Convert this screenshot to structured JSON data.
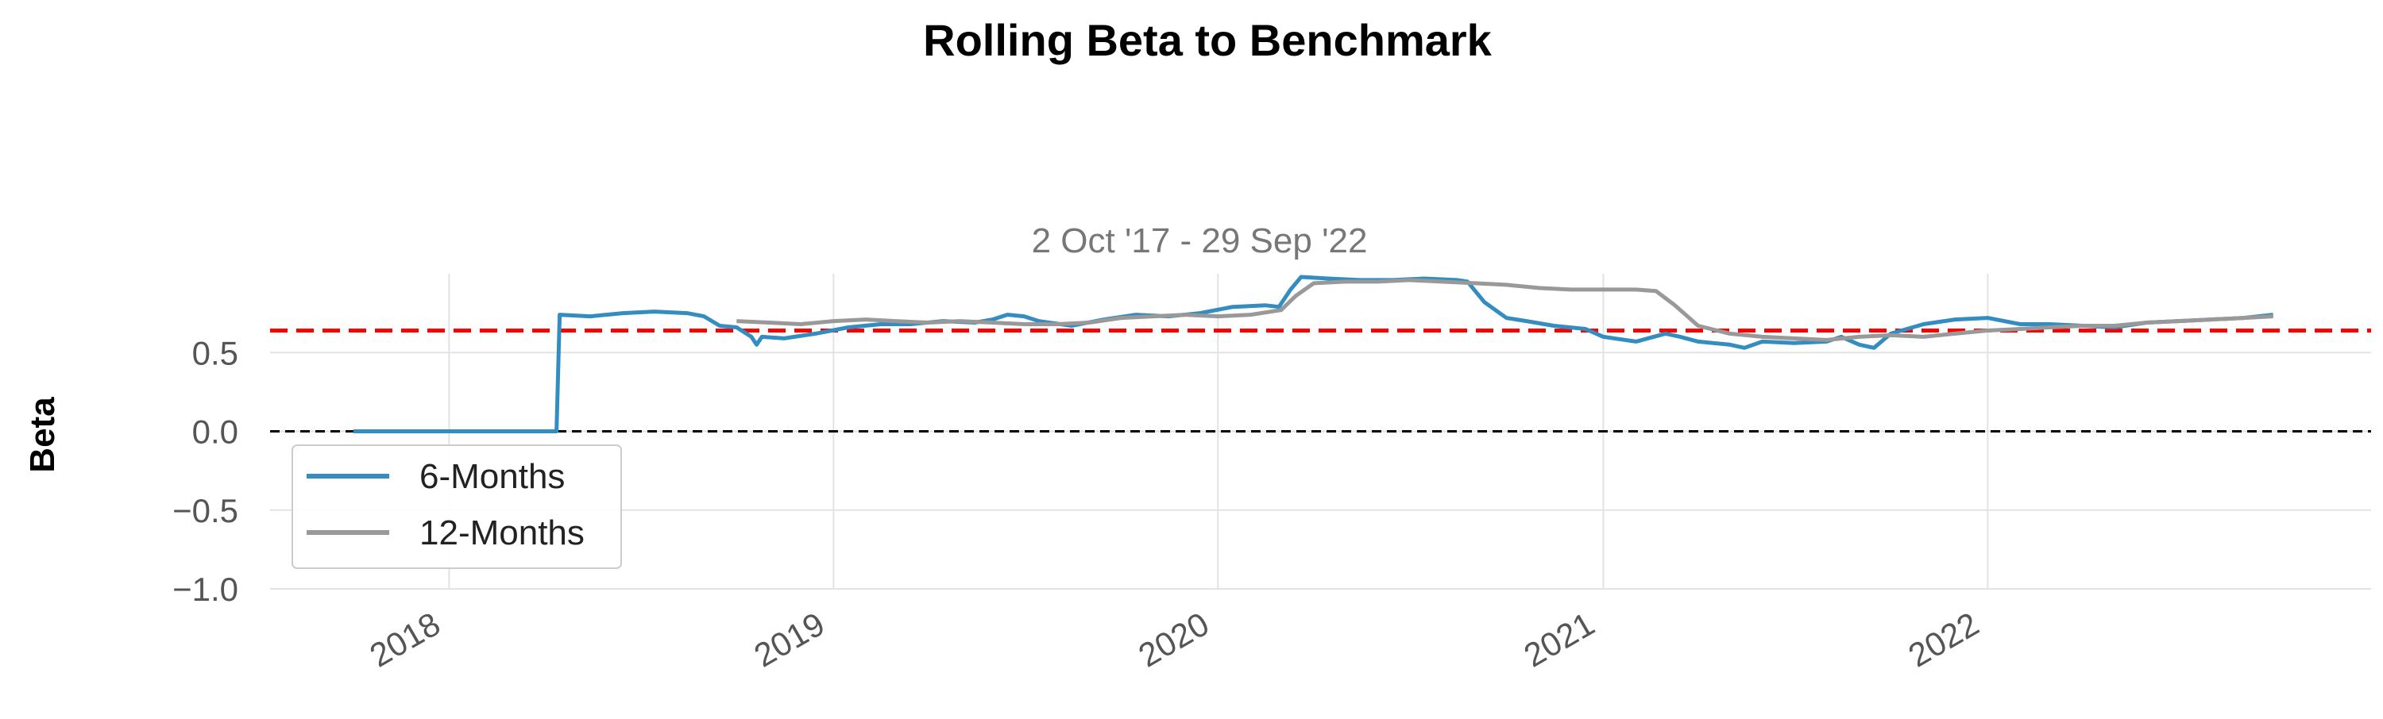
{
  "chart_data": {
    "type": "line",
    "title": "Rolling Beta to Benchmark",
    "subtitle": "2 Oct '17 - 29 Sep '22",
    "xlabel": "",
    "ylabel": "Beta",
    "xlim": [
      "2017-07-15",
      "2022-12-31"
    ],
    "ylim": [
      -1.0,
      1.0
    ],
    "yticks": [
      0.5,
      0.0,
      -0.5,
      -1.0
    ],
    "ytick_labels": [
      "0.5",
      "0.0",
      "−0.5",
      "−1.0"
    ],
    "xticks": [
      "2018-01-01",
      "2019-01-01",
      "2020-01-01",
      "2021-01-01",
      "2022-01-01"
    ],
    "xtick_labels": [
      "2018",
      "2019",
      "2020",
      "2021",
      "2022"
    ],
    "grid": true,
    "legend_position": "lower-left",
    "reference_lines": [
      {
        "y": 0.64,
        "color": "#ff0000",
        "style": "dashed"
      },
      {
        "y": 0.0,
        "color": "#000000",
        "style": "dashed"
      }
    ],
    "series": [
      {
        "name": "6-Months",
        "color": "#348dc1",
        "points": [
          [
            "2017-10-02",
            0.0
          ],
          [
            "2018-04-13",
            0.0
          ],
          [
            "2018-04-16",
            0.74
          ],
          [
            "2018-05-15",
            0.73
          ],
          [
            "2018-06-15",
            0.75
          ],
          [
            "2018-07-15",
            0.76
          ],
          [
            "2018-08-15",
            0.75
          ],
          [
            "2018-08-31",
            0.73
          ],
          [
            "2018-09-15",
            0.67
          ],
          [
            "2018-10-01",
            0.66
          ],
          [
            "2018-10-15",
            0.6
          ],
          [
            "2018-10-20",
            0.55
          ],
          [
            "2018-10-25",
            0.6
          ],
          [
            "2018-11-15",
            0.59
          ],
          [
            "2018-12-15",
            0.62
          ],
          [
            "2019-01-15",
            0.66
          ],
          [
            "2019-02-15",
            0.68
          ],
          [
            "2019-03-15",
            0.68
          ],
          [
            "2019-04-15",
            0.7
          ],
          [
            "2019-05-15",
            0.69
          ],
          [
            "2019-06-01",
            0.71
          ],
          [
            "2019-06-15",
            0.74
          ],
          [
            "2019-07-01",
            0.73
          ],
          [
            "2019-07-15",
            0.7
          ],
          [
            "2019-08-15",
            0.67
          ],
          [
            "2019-09-15",
            0.71
          ],
          [
            "2019-10-15",
            0.74
          ],
          [
            "2019-11-15",
            0.73
          ],
          [
            "2019-12-15",
            0.75
          ],
          [
            "2020-01-15",
            0.79
          ],
          [
            "2020-02-15",
            0.8
          ],
          [
            "2020-02-28",
            0.79
          ],
          [
            "2020-03-10",
            0.9
          ],
          [
            "2020-03-20",
            0.98
          ],
          [
            "2020-04-15",
            0.97
          ],
          [
            "2020-05-15",
            0.96
          ],
          [
            "2020-06-15",
            0.96
          ],
          [
            "2020-07-15",
            0.97
          ],
          [
            "2020-08-15",
            0.96
          ],
          [
            "2020-08-25",
            0.95
          ],
          [
            "2020-09-10",
            0.82
          ],
          [
            "2020-10-01",
            0.72
          ],
          [
            "2020-10-20",
            0.7
          ],
          [
            "2020-11-15",
            0.67
          ],
          [
            "2020-12-15",
            0.65
          ],
          [
            "2021-01-01",
            0.6
          ],
          [
            "2021-02-01",
            0.57
          ],
          [
            "2021-03-01",
            0.62
          ],
          [
            "2021-03-15",
            0.6
          ],
          [
            "2021-04-01",
            0.57
          ],
          [
            "2021-05-01",
            0.55
          ],
          [
            "2021-05-15",
            0.53
          ],
          [
            "2021-06-01",
            0.57
          ],
          [
            "2021-07-01",
            0.56
          ],
          [
            "2021-08-01",
            0.57
          ],
          [
            "2021-08-15",
            0.6
          ],
          [
            "2021-09-01",
            0.55
          ],
          [
            "2021-09-15",
            0.53
          ],
          [
            "2021-10-01",
            0.62
          ],
          [
            "2021-11-01",
            0.68
          ],
          [
            "2021-12-01",
            0.71
          ],
          [
            "2022-01-01",
            0.72
          ],
          [
            "2022-02-01",
            0.68
          ],
          [
            "2022-03-01",
            0.68
          ],
          [
            "2022-04-01",
            0.67
          ],
          [
            "2022-05-01",
            0.66
          ],
          [
            "2022-06-01",
            0.69
          ],
          [
            "2022-07-01",
            0.7
          ],
          [
            "2022-08-01",
            0.71
          ],
          [
            "2022-09-01",
            0.72
          ],
          [
            "2022-09-29",
            0.74
          ]
        ]
      },
      {
        "name": "12-Months",
        "color": "#999999",
        "points": [
          [
            "2018-10-01",
            0.7
          ],
          [
            "2018-11-01",
            0.69
          ],
          [
            "2018-12-01",
            0.68
          ],
          [
            "2019-01-01",
            0.7
          ],
          [
            "2019-02-01",
            0.71
          ],
          [
            "2019-03-01",
            0.7
          ],
          [
            "2019-04-01",
            0.69
          ],
          [
            "2019-05-01",
            0.7
          ],
          [
            "2019-06-01",
            0.69
          ],
          [
            "2019-07-01",
            0.68
          ],
          [
            "2019-08-01",
            0.68
          ],
          [
            "2019-09-01",
            0.69
          ],
          [
            "2019-10-01",
            0.72
          ],
          [
            "2019-11-01",
            0.73
          ],
          [
            "2019-12-01",
            0.74
          ],
          [
            "2020-01-01",
            0.73
          ],
          [
            "2020-02-01",
            0.74
          ],
          [
            "2020-03-01",
            0.77
          ],
          [
            "2020-03-15",
            0.86
          ],
          [
            "2020-04-01",
            0.94
          ],
          [
            "2020-05-01",
            0.95
          ],
          [
            "2020-06-01",
            0.95
          ],
          [
            "2020-07-01",
            0.96
          ],
          [
            "2020-08-01",
            0.95
          ],
          [
            "2020-09-01",
            0.94
          ],
          [
            "2020-10-01",
            0.93
          ],
          [
            "2020-11-01",
            0.91
          ],
          [
            "2020-12-01",
            0.9
          ],
          [
            "2021-01-01",
            0.9
          ],
          [
            "2021-02-01",
            0.9
          ],
          [
            "2021-02-20",
            0.89
          ],
          [
            "2021-03-10",
            0.8
          ],
          [
            "2021-04-01",
            0.67
          ],
          [
            "2021-05-01",
            0.62
          ],
          [
            "2021-06-01",
            0.6
          ],
          [
            "2021-07-01",
            0.59
          ],
          [
            "2021-08-01",
            0.58
          ],
          [
            "2021-09-01",
            0.6
          ],
          [
            "2021-10-01",
            0.61
          ],
          [
            "2021-11-01",
            0.6
          ],
          [
            "2021-12-01",
            0.62
          ],
          [
            "2022-01-01",
            0.64
          ],
          [
            "2022-02-01",
            0.65
          ],
          [
            "2022-03-01",
            0.66
          ],
          [
            "2022-04-01",
            0.67
          ],
          [
            "2022-05-01",
            0.67
          ],
          [
            "2022-06-01",
            0.69
          ],
          [
            "2022-07-01",
            0.7
          ],
          [
            "2022-08-01",
            0.71
          ],
          [
            "2022-09-01",
            0.72
          ],
          [
            "2022-09-29",
            0.73
          ]
        ]
      }
    ]
  }
}
